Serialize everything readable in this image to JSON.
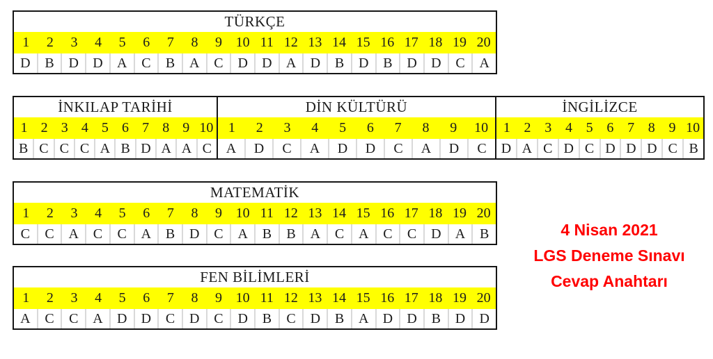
{
  "colors": {
    "highlight_yellow": "#ffff00",
    "grid_black": "#151515",
    "cell_divider_gray": "#d9d9d9",
    "accent_red": "#ff0000",
    "text_black": "#1c1c1c"
  },
  "tables": [
    {
      "id": "turkce",
      "title": "TÜRKÇE",
      "numbers": [
        "1",
        "2",
        "3",
        "4",
        "5",
        "6",
        "7",
        "8",
        "9",
        "10",
        "11",
        "12",
        "13",
        "14",
        "15",
        "16",
        "17",
        "18",
        "19",
        "20"
      ],
      "answers": [
        "D",
        "B",
        "D",
        "D",
        "A",
        "C",
        "B",
        "A",
        "C",
        "D",
        "D",
        "A",
        "D",
        "B",
        "D",
        "B",
        "D",
        "D",
        "C",
        "A"
      ]
    },
    {
      "id": "inkilap-tarihi",
      "title": "İNKILAP TARİHİ",
      "numbers": [
        "1",
        "2",
        "3",
        "4",
        "5",
        "6",
        "7",
        "8",
        "9",
        "10"
      ],
      "answers": [
        "B",
        "C",
        "C",
        "C",
        "A",
        "B",
        "D",
        "A",
        "A",
        "C"
      ]
    },
    {
      "id": "din-kulturu",
      "title": "DİN KÜLTÜRÜ",
      "numbers": [
        "1",
        "2",
        "3",
        "4",
        "5",
        "6",
        "7",
        "8",
        "9",
        "10"
      ],
      "answers": [
        "A",
        "D",
        "C",
        "A",
        "D",
        "D",
        "C",
        "A",
        "D",
        "C"
      ]
    },
    {
      "id": "ingilizce",
      "title": "İNGİLİZCE",
      "numbers": [
        "1",
        "2",
        "3",
        "4",
        "5",
        "6",
        "7",
        "8",
        "9",
        "10"
      ],
      "answers": [
        "D",
        "A",
        "C",
        "D",
        "C",
        "D",
        "D",
        "D",
        "C",
        "B"
      ]
    },
    {
      "id": "matematik",
      "title": "MATEMATİK",
      "numbers": [
        "1",
        "2",
        "3",
        "4",
        "5",
        "6",
        "7",
        "8",
        "9",
        "10",
        "11",
        "12",
        "13",
        "14",
        "15",
        "16",
        "17",
        "18",
        "19",
        "20"
      ],
      "answers": [
        "C",
        "C",
        "A",
        "C",
        "C",
        "A",
        "B",
        "D",
        "C",
        "A",
        "B",
        "B",
        "A",
        "C",
        "A",
        "C",
        "C",
        "D",
        "A",
        "B"
      ]
    },
    {
      "id": "fen-bilimleri",
      "title": "FEN BİLİMLERİ",
      "numbers": [
        "1",
        "2",
        "3",
        "4",
        "5",
        "6",
        "7",
        "8",
        "9",
        "10",
        "11",
        "12",
        "13",
        "14",
        "15",
        "16",
        "17",
        "18",
        "19",
        "20"
      ],
      "answers": [
        "A",
        "C",
        "C",
        "A",
        "D",
        "D",
        "C",
        "D",
        "C",
        "D",
        "B",
        "C",
        "D",
        "B",
        "A",
        "D",
        "D",
        "B",
        "D",
        "D"
      ]
    }
  ],
  "note": {
    "date": "4 Nisan 2021",
    "exam": "LGS Deneme Sınavı",
    "label": "Cevap Anahtarı"
  }
}
